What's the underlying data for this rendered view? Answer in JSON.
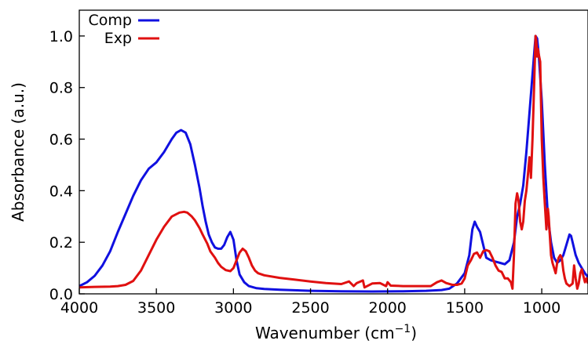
{
  "chart_data": {
    "type": "line",
    "xlabel": "Wavenumber (cm",
    "xlabel_sup": "−1",
    "xlabel_tail": ")",
    "ylabel": "Absorbance (a.u.)",
    "xlim": [
      4000,
      700
    ],
    "ylim": [
      0,
      1.1
    ],
    "x_reversed": true,
    "grid": false,
    "legend_position": "top-left",
    "x_ticks": [
      4000,
      3500,
      3000,
      2500,
      2000,
      1500,
      1000
    ],
    "x_tick_labels": [
      "4000",
      "3500",
      "3000",
      "2500",
      "2000",
      "1500",
      "1000"
    ],
    "y_ticks": [
      0.0,
      0.2,
      0.4,
      0.6,
      0.8,
      1.0
    ],
    "y_tick_labels": [
      "0.0",
      "0.2",
      "0.4",
      "0.6",
      "0.8",
      "1.0"
    ],
    "series": [
      {
        "name": "Comp",
        "color": "#1010e0",
        "points": [
          [
            4000,
            0.03
          ],
          [
            3950,
            0.045
          ],
          [
            3900,
            0.07
          ],
          [
            3850,
            0.11
          ],
          [
            3800,
            0.165
          ],
          [
            3750,
            0.24
          ],
          [
            3700,
            0.31
          ],
          [
            3650,
            0.38
          ],
          [
            3600,
            0.44
          ],
          [
            3550,
            0.485
          ],
          [
            3500,
            0.51
          ],
          [
            3450,
            0.55
          ],
          [
            3400,
            0.6
          ],
          [
            3370,
            0.625
          ],
          [
            3340,
            0.635
          ],
          [
            3310,
            0.625
          ],
          [
            3280,
            0.58
          ],
          [
            3250,
            0.5
          ],
          [
            3220,
            0.41
          ],
          [
            3200,
            0.34
          ],
          [
            3180,
            0.28
          ],
          [
            3160,
            0.23
          ],
          [
            3140,
            0.2
          ],
          [
            3120,
            0.18
          ],
          [
            3100,
            0.175
          ],
          [
            3080,
            0.175
          ],
          [
            3060,
            0.19
          ],
          [
            3040,
            0.22
          ],
          [
            3020,
            0.24
          ],
          [
            3000,
            0.21
          ],
          [
            2980,
            0.13
          ],
          [
            2960,
            0.075
          ],
          [
            2930,
            0.045
          ],
          [
            2900,
            0.03
          ],
          [
            2850,
            0.022
          ],
          [
            2800,
            0.019
          ],
          [
            2700,
            0.016
          ],
          [
            2500,
            0.012
          ],
          [
            2300,
            0.01
          ],
          [
            2100,
            0.009
          ],
          [
            1900,
            0.01
          ],
          [
            1750,
            0.012
          ],
          [
            1650,
            0.015
          ],
          [
            1600,
            0.02
          ],
          [
            1550,
            0.04
          ],
          [
            1500,
            0.08
          ],
          [
            1470,
            0.15
          ],
          [
            1450,
            0.25
          ],
          [
            1435,
            0.28
          ],
          [
            1420,
            0.26
          ],
          [
            1400,
            0.24
          ],
          [
            1380,
            0.19
          ],
          [
            1360,
            0.14
          ],
          [
            1330,
            0.13
          ],
          [
            1300,
            0.125
          ],
          [
            1270,
            0.12
          ],
          [
            1240,
            0.115
          ],
          [
            1210,
            0.13
          ],
          [
            1180,
            0.2
          ],
          [
            1160,
            0.3
          ],
          [
            1140,
            0.35
          ],
          [
            1120,
            0.42
          ],
          [
            1100,
            0.55
          ],
          [
            1080,
            0.7
          ],
          [
            1060,
            0.85
          ],
          [
            1040,
            1.0
          ],
          [
            1030,
            0.99
          ],
          [
            1020,
            0.93
          ],
          [
            1000,
            0.75
          ],
          [
            980,
            0.5
          ],
          [
            960,
            0.3
          ],
          [
            940,
            0.2
          ],
          [
            920,
            0.14
          ],
          [
            900,
            0.12
          ],
          [
            880,
            0.13
          ],
          [
            860,
            0.15
          ],
          [
            840,
            0.19
          ],
          [
            820,
            0.23
          ],
          [
            810,
            0.225
          ],
          [
            800,
            0.2
          ],
          [
            780,
            0.15
          ],
          [
            760,
            0.12
          ],
          [
            740,
            0.1
          ],
          [
            720,
            0.08
          ],
          [
            700,
            0.065
          ]
        ]
      },
      {
        "name": "Exp",
        "color": "#e01010",
        "points": [
          [
            4000,
            0.025
          ],
          [
            3900,
            0.027
          ],
          [
            3800,
            0.028
          ],
          [
            3750,
            0.03
          ],
          [
            3700,
            0.035
          ],
          [
            3650,
            0.05
          ],
          [
            3600,
            0.09
          ],
          [
            3550,
            0.15
          ],
          [
            3500,
            0.21
          ],
          [
            3450,
            0.26
          ],
          [
            3400,
            0.3
          ],
          [
            3350,
            0.315
          ],
          [
            3320,
            0.318
          ],
          [
            3300,
            0.315
          ],
          [
            3270,
            0.3
          ],
          [
            3250,
            0.285
          ],
          [
            3220,
            0.255
          ],
          [
            3200,
            0.23
          ],
          [
            3170,
            0.195
          ],
          [
            3150,
            0.165
          ],
          [
            3120,
            0.14
          ],
          [
            3100,
            0.12
          ],
          [
            3080,
            0.105
          ],
          [
            3050,
            0.092
          ],
          [
            3020,
            0.088
          ],
          [
            3000,
            0.1
          ],
          [
            2980,
            0.13
          ],
          [
            2960,
            0.16
          ],
          [
            2940,
            0.175
          ],
          [
            2920,
            0.165
          ],
          [
            2900,
            0.14
          ],
          [
            2880,
            0.11
          ],
          [
            2860,
            0.09
          ],
          [
            2840,
            0.08
          ],
          [
            2800,
            0.072
          ],
          [
            2700,
            0.062
          ],
          [
            2600,
            0.055
          ],
          [
            2500,
            0.048
          ],
          [
            2400,
            0.042
          ],
          [
            2300,
            0.038
          ],
          [
            2250,
            0.048
          ],
          [
            2220,
            0.03
          ],
          [
            2200,
            0.042
          ],
          [
            2160,
            0.052
          ],
          [
            2150,
            0.025
          ],
          [
            2100,
            0.04
          ],
          [
            2050,
            0.042
          ],
          [
            2010,
            0.03
          ],
          [
            2000,
            0.045
          ],
          [
            1980,
            0.032
          ],
          [
            1900,
            0.03
          ],
          [
            1800,
            0.03
          ],
          [
            1720,
            0.03
          ],
          [
            1680,
            0.045
          ],
          [
            1650,
            0.052
          ],
          [
            1620,
            0.042
          ],
          [
            1580,
            0.035
          ],
          [
            1550,
            0.035
          ],
          [
            1520,
            0.04
          ],
          [
            1500,
            0.06
          ],
          [
            1480,
            0.11
          ],
          [
            1460,
            0.13
          ],
          [
            1440,
            0.155
          ],
          [
            1420,
            0.16
          ],
          [
            1400,
            0.14
          ],
          [
            1380,
            0.165
          ],
          [
            1360,
            0.17
          ],
          [
            1340,
            0.165
          ],
          [
            1320,
            0.14
          ],
          [
            1300,
            0.11
          ],
          [
            1280,
            0.09
          ],
          [
            1260,
            0.085
          ],
          [
            1240,
            0.06
          ],
          [
            1220,
            0.06
          ],
          [
            1200,
            0.045
          ],
          [
            1190,
            0.02
          ],
          [
            1180,
            0.15
          ],
          [
            1170,
            0.35
          ],
          [
            1160,
            0.39
          ],
          [
            1150,
            0.36
          ],
          [
            1140,
            0.28
          ],
          [
            1130,
            0.25
          ],
          [
            1120,
            0.28
          ],
          [
            1110,
            0.36
          ],
          [
            1100,
            0.4
          ],
          [
            1090,
            0.46
          ],
          [
            1080,
            0.53
          ],
          [
            1075,
            0.5
          ],
          [
            1070,
            0.45
          ],
          [
            1060,
            0.6
          ],
          [
            1050,
            0.8
          ],
          [
            1040,
            1.0
          ],
          [
            1035,
            0.98
          ],
          [
            1030,
            0.92
          ],
          [
            1025,
            0.95
          ],
          [
            1020,
            0.93
          ],
          [
            1010,
            0.9
          ],
          [
            1000,
            0.6
          ],
          [
            990,
            0.45
          ],
          [
            980,
            0.35
          ],
          [
            970,
            0.25
          ],
          [
            960,
            0.33
          ],
          [
            955,
            0.3
          ],
          [
            950,
            0.25
          ],
          [
            940,
            0.15
          ],
          [
            930,
            0.12
          ],
          [
            920,
            0.1
          ],
          [
            910,
            0.08
          ],
          [
            900,
            0.12
          ],
          [
            890,
            0.14
          ],
          [
            880,
            0.15
          ],
          [
            870,
            0.14
          ],
          [
            860,
            0.09
          ],
          [
            850,
            0.06
          ],
          [
            840,
            0.04
          ],
          [
            830,
            0.035
          ],
          [
            820,
            0.03
          ],
          [
            810,
            0.035
          ],
          [
            800,
            0.04
          ],
          [
            790,
            0.11
          ],
          [
            780,
            0.06
          ],
          [
            770,
            0.02
          ],
          [
            760,
            0.04
          ],
          [
            750,
            0.08
          ],
          [
            740,
            0.095
          ],
          [
            730,
            0.07
          ],
          [
            720,
            0.045
          ],
          [
            710,
            0.06
          ],
          [
            700,
            0.04
          ]
        ]
      }
    ]
  }
}
